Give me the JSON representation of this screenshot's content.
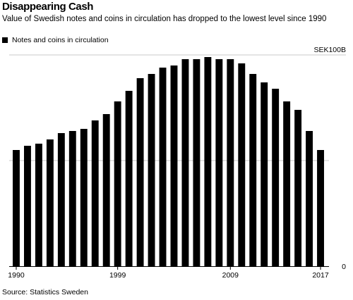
{
  "header": {
    "title": "Disappearing Cash",
    "subtitle": "Value of Swedish notes and coins in circulation has dropped to the lowest level since 1990"
  },
  "legend": {
    "label": "Notes and coins in circulation",
    "color": "#000000"
  },
  "source": "Statistics Sweden",
  "chart_data": {
    "type": "bar",
    "title": "Disappearing Cash",
    "subtitle": "Value of Swedish notes and coins in circulation has dropped to the lowest level since 1990",
    "xlabel": "",
    "ylabel": "",
    "categories": [
      1990,
      1991,
      1992,
      1993,
      1994,
      1995,
      1996,
      1997,
      1998,
      1999,
      2000,
      2001,
      2002,
      2003,
      2004,
      2005,
      2006,
      2007,
      2008,
      2009,
      2010,
      2011,
      2012,
      2013,
      2014,
      2015,
      2016,
      2017
    ],
    "x_tick_labels": [
      "1990",
      "1999",
      "2009",
      "2017"
    ],
    "series": [
      {
        "name": "Notes and coins in circulation",
        "color": "#000000",
        "values": [
          55,
          57,
          58,
          60,
          63,
          64,
          65,
          69,
          72,
          78,
          83,
          89,
          91,
          94,
          95,
          98,
          98,
          99,
          98,
          98,
          96,
          91,
          87,
          84,
          78,
          74,
          64,
          55
        ]
      }
    ],
    "y_tick_labels": [
      {
        "value": 0,
        "label": "0"
      },
      {
        "value": 100,
        "label": "SEK100B"
      }
    ],
    "ylim": [
      0,
      100
    ],
    "grid": true,
    "legend_position": "top-left"
  }
}
